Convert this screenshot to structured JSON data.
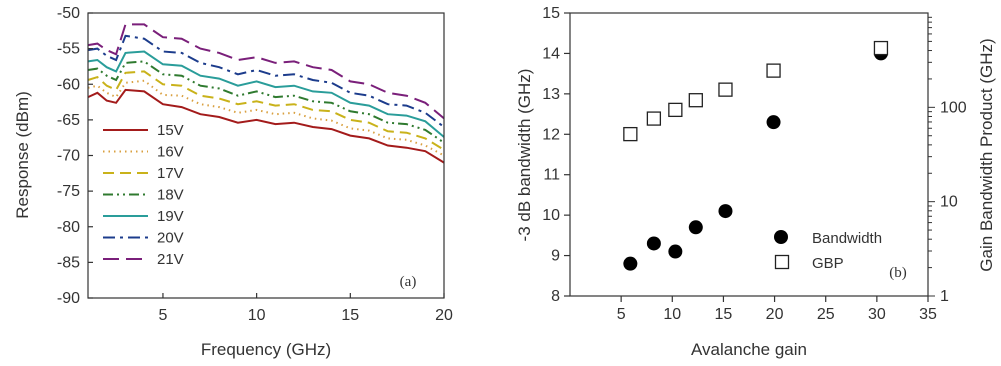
{
  "chart_data": [
    {
      "type": "line",
      "panel_tag": "(a)",
      "xlabel": "Frequency (GHz)",
      "ylabel": "Response (dBm)",
      "xlim": [
        1,
        20
      ],
      "ylim": [
        -90,
        -50
      ],
      "xticks": [
        5,
        10,
        15,
        20
      ],
      "yticks": [
        -90,
        -85,
        -80,
        -75,
        -70,
        -65,
        -60,
        -55,
        -50
      ],
      "legend_position": "bottom-left",
      "grid": false,
      "x": [
        1,
        1.5,
        2,
        2.5,
        3,
        4,
        5,
        6,
        7,
        8,
        9,
        10,
        11,
        12,
        13,
        14,
        15,
        16,
        17,
        18,
        19,
        20
      ],
      "series": [
        {
          "name": "15V",
          "color": "#a31b1b",
          "dash": "solid",
          "values": [
            -61.8,
            -61.2,
            -62.3,
            -62.6,
            -60.8,
            -61.0,
            -62.8,
            -63.2,
            -64.2,
            -64.6,
            -65.4,
            -65.0,
            -65.6,
            -65.4,
            -66.0,
            -66.3,
            -67.2,
            -67.6,
            -68.6,
            -68.9,
            -69.4,
            -71.0
          ]
        },
        {
          "name": "16V",
          "color": "#d9a040",
          "dash": "dot",
          "values": [
            -60.5,
            -60.2,
            -61.2,
            -61.8,
            -59.8,
            -59.5,
            -61.5,
            -61.6,
            -62.8,
            -63.2,
            -64.0,
            -63.6,
            -64.2,
            -64.0,
            -64.8,
            -65.1,
            -66.2,
            -66.5,
            -67.6,
            -67.8,
            -68.6,
            -70.0
          ]
        },
        {
          "name": "17V",
          "color": "#c9b21a",
          "dash": "dash",
          "values": [
            -59.4,
            -59.0,
            -60.2,
            -60.8,
            -58.4,
            -58.2,
            -60.0,
            -60.2,
            -61.6,
            -62.0,
            -62.8,
            -62.4,
            -63.0,
            -62.8,
            -63.6,
            -63.8,
            -65.0,
            -65.4,
            -66.6,
            -66.8,
            -67.6,
            -69.2
          ]
        },
        {
          "name": "18V",
          "color": "#2f7a2f",
          "dash": "dashdotdot",
          "values": [
            -58.0,
            -57.8,
            -58.8,
            -59.4,
            -57.0,
            -56.8,
            -58.6,
            -58.8,
            -60.2,
            -60.6,
            -61.6,
            -61.0,
            -61.8,
            -61.6,
            -62.4,
            -62.6,
            -63.8,
            -64.2,
            -65.4,
            -65.6,
            -66.4,
            -68.2
          ]
        },
        {
          "name": "19V",
          "color": "#2a9d9a",
          "dash": "solid",
          "values": [
            -56.8,
            -56.6,
            -57.6,
            -58.2,
            -55.6,
            -55.4,
            -57.2,
            -57.4,
            -58.8,
            -59.2,
            -60.2,
            -59.6,
            -60.4,
            -60.2,
            -61.0,
            -61.2,
            -62.6,
            -63.0,
            -64.2,
            -64.4,
            -65.2,
            -67.4
          ]
        },
        {
          "name": "20V",
          "color": "#1c3c8c",
          "dash": "dashdot",
          "values": [
            -55.2,
            -55.0,
            -56.0,
            -56.6,
            -53.2,
            -53.6,
            -55.4,
            -55.6,
            -57.0,
            -57.6,
            -58.6,
            -58.0,
            -58.8,
            -58.6,
            -59.4,
            -59.8,
            -61.2,
            -61.6,
            -62.8,
            -63.0,
            -64.0,
            -66.0
          ]
        },
        {
          "name": "21V",
          "color": "#7a1f7a",
          "dash": "longdash",
          "values": [
            -54.5,
            -54.3,
            -55.2,
            -55.8,
            -51.6,
            -51.6,
            -53.4,
            -53.6,
            -55.0,
            -55.6,
            -56.6,
            -56.2,
            -57.0,
            -56.8,
            -57.6,
            -58.0,
            -59.6,
            -60.0,
            -61.2,
            -61.6,
            -62.6,
            -64.8
          ]
        }
      ]
    },
    {
      "type": "scatter",
      "panel_tag": "(b)",
      "xlabel": "Avalanche gain",
      "ylabel": "-3 dB bandwidth (GHz)",
      "ylabel_right": "Gain Bandwidth Product (GHz)",
      "xlim": [
        0,
        35
      ],
      "ylim": [
        8,
        15
      ],
      "ylim_right": [
        1,
        1000
      ],
      "yscale_right": "log",
      "xticks": [
        5,
        10,
        15,
        20,
        25,
        30,
        35
      ],
      "yticks": [
        8,
        9,
        10,
        11,
        12,
        13,
        14,
        15
      ],
      "yticks_right": [
        1,
        10,
        100
      ],
      "legend_position": "bottom-right",
      "grid": false,
      "series": [
        {
          "name": "Bandwidth",
          "marker": "filled-circle",
          "axis": "left",
          "x": [
            5.9,
            8.2,
            10.3,
            12.3,
            15.2,
            19.9,
            30.4
          ],
          "y": [
            8.8,
            9.3,
            9.1,
            9.7,
            10.1,
            12.3,
            14.0
          ]
        },
        {
          "name": "GBP",
          "marker": "open-square",
          "axis": "right",
          "x": [
            5.9,
            8.2,
            10.3,
            12.3,
            15.2,
            19.9,
            30.4
          ],
          "y": [
            52,
            76,
            94,
            119,
            154,
            245,
            425
          ]
        }
      ]
    }
  ]
}
